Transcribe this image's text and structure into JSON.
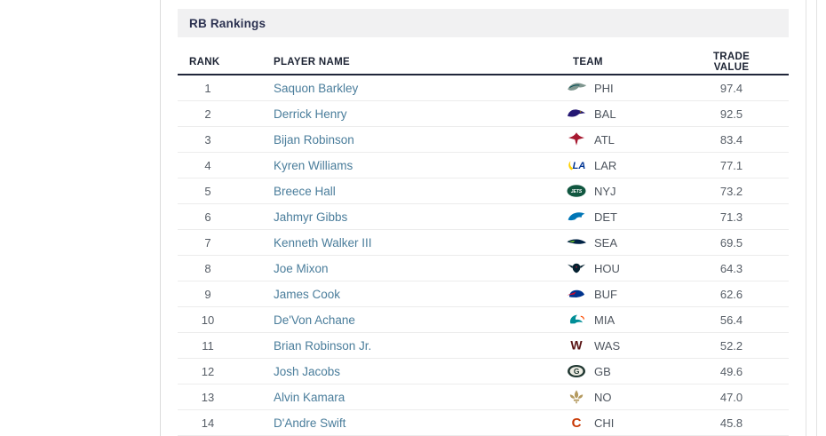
{
  "panel": {
    "title": "RB Rankings"
  },
  "table": {
    "columns": [
      {
        "key": "rank",
        "label": "RANK"
      },
      {
        "key": "player",
        "label": "PLAYER NAME"
      },
      {
        "key": "team",
        "label": "TEAM"
      },
      {
        "key": "value",
        "label": "TRADE VALUE"
      }
    ],
    "rows": [
      {
        "rank": "1",
        "player": "Saquon Barkley",
        "team": "PHI",
        "value": "97.4",
        "icon": "philadelphia-eagles-logo"
      },
      {
        "rank": "2",
        "player": "Derrick Henry",
        "team": "BAL",
        "value": "92.5",
        "icon": "baltimore-ravens-logo"
      },
      {
        "rank": "3",
        "player": "Bijan Robinson",
        "team": "ATL",
        "value": "83.4",
        "icon": "atlanta-falcons-logo"
      },
      {
        "rank": "4",
        "player": "Kyren Williams",
        "team": "LAR",
        "value": "77.1",
        "icon": "los-angeles-rams-logo"
      },
      {
        "rank": "5",
        "player": "Breece Hall",
        "team": "NYJ",
        "value": "73.2",
        "icon": "new-york-jets-logo"
      },
      {
        "rank": "6",
        "player": "Jahmyr Gibbs",
        "team": "DET",
        "value": "71.3",
        "icon": "detroit-lions-logo"
      },
      {
        "rank": "7",
        "player": "Kenneth Walker III",
        "team": "SEA",
        "value": "69.5",
        "icon": "seattle-seahawks-logo"
      },
      {
        "rank": "8",
        "player": "Joe Mixon",
        "team": "HOU",
        "value": "64.3",
        "icon": "houston-texans-logo"
      },
      {
        "rank": "9",
        "player": "James Cook",
        "team": "BUF",
        "value": "62.6",
        "icon": "buffalo-bills-logo"
      },
      {
        "rank": "10",
        "player": "De'Von Achane",
        "team": "MIA",
        "value": "56.4",
        "icon": "miami-dolphins-logo"
      },
      {
        "rank": "11",
        "player": "Brian Robinson Jr.",
        "team": "WAS",
        "value": "52.2",
        "icon": "washington-commanders-logo"
      },
      {
        "rank": "12",
        "player": "Josh Jacobs",
        "team": "GB",
        "value": "49.6",
        "icon": "green-bay-packers-logo"
      },
      {
        "rank": "13",
        "player": "Alvin Kamara",
        "team": "NO",
        "value": "47.0",
        "icon": "new-orleans-saints-logo"
      },
      {
        "rank": "14",
        "player": "D'Andre Swift",
        "team": "CHI",
        "value": "45.8",
        "icon": "chicago-bears-logo"
      }
    ]
  },
  "colors": {
    "title_bar_bg": "#f1f1f2",
    "title_text": "#2b3150",
    "column_header_text": "#1c2333",
    "header_rule": "#20263a",
    "body_text": "#565d66",
    "player_link": "#4a7d9b",
    "row_border": "#ececec",
    "team_colors": {
      "PHI": [
        "#7f968f",
        "#004C54"
      ],
      "BAL": [
        "#241773",
        "#9E7C0C"
      ],
      "ATL": [
        "#A71930",
        "#000000"
      ],
      "LAR": [
        "#003594",
        "#FFD100"
      ],
      "NYJ": [
        "#115740",
        "#FFFFFF"
      ],
      "DET": [
        "#0076B6",
        "#B0B7BC"
      ],
      "SEA": [
        "#002244",
        "#69BE28"
      ],
      "HOU": [
        "#03202F",
        "#A71930"
      ],
      "BUF": [
        "#00338D",
        "#C60C30"
      ],
      "MIA": [
        "#008E97",
        "#FC4C02"
      ],
      "WAS": [
        "#5A1414",
        "#FFB612"
      ],
      "GB": [
        "#203731",
        "#EEEDE4"
      ],
      "NO": [
        "#b49a5f",
        "#b49a5f"
      ],
      "CHI": [
        "#C83803",
        "#0B162A"
      ]
    }
  }
}
